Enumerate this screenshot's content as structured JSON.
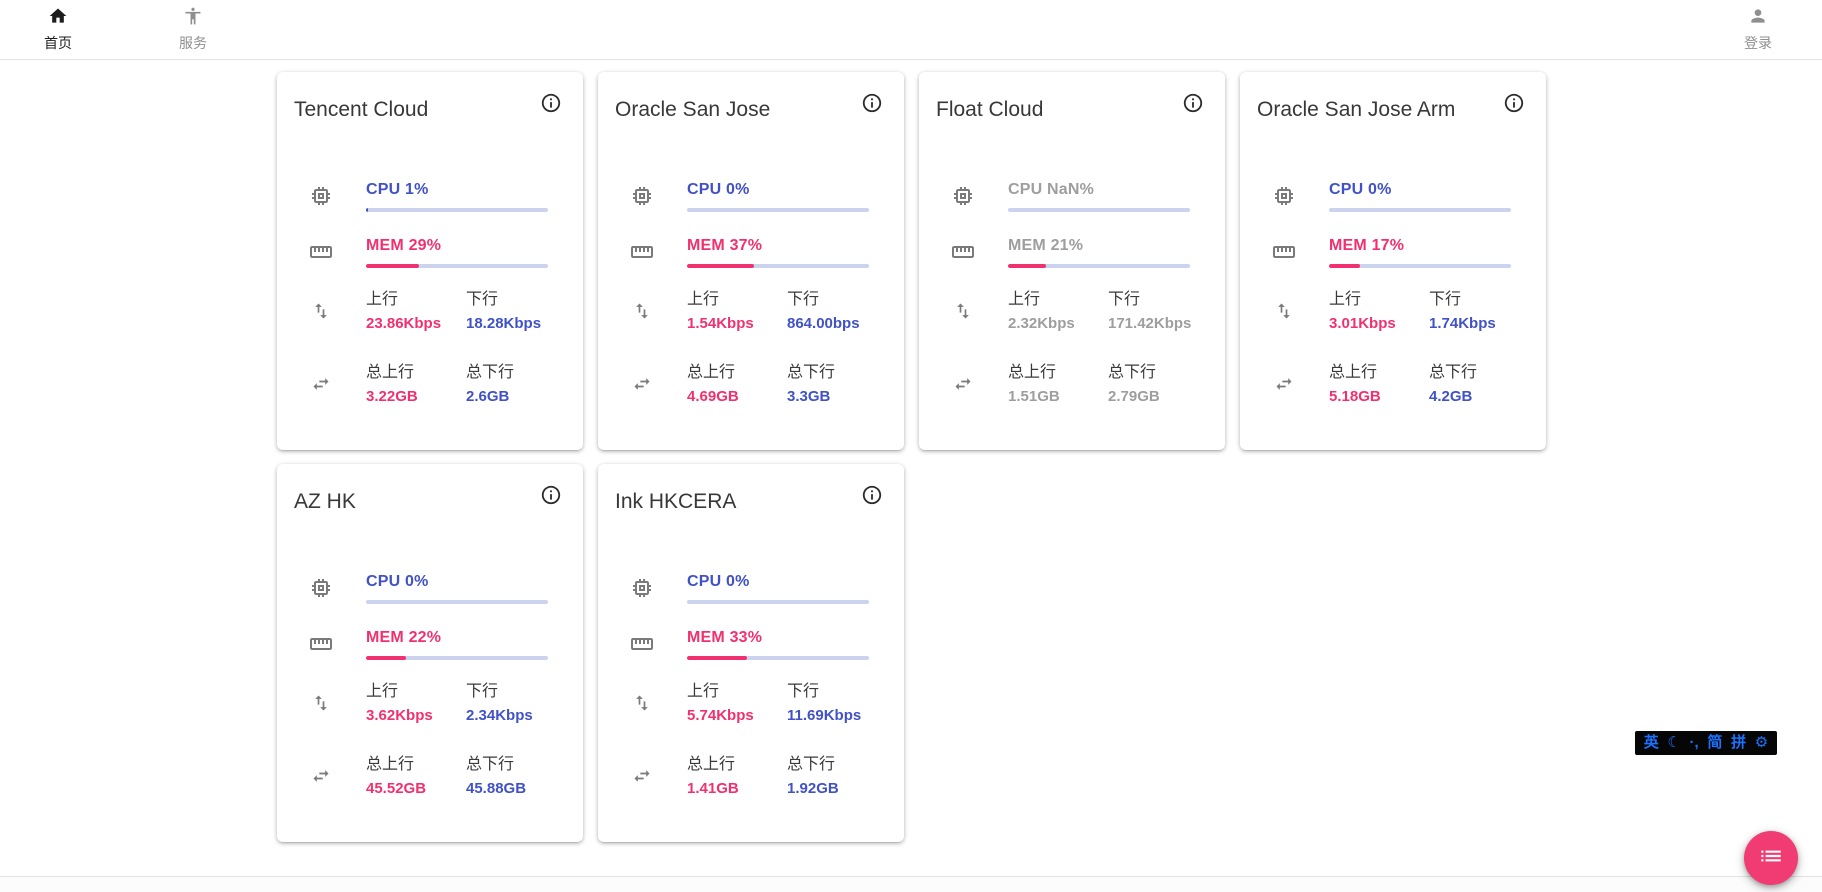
{
  "colors": {
    "blue": "#4152c7",
    "pink": "#f1316f",
    "track": "#ccd3ee",
    "gray": "#9e9e9e",
    "ime-blue": "#1a73ff",
    "fab-pink": "#f13c73"
  },
  "nav": {
    "home": "首页",
    "services": "服务",
    "login": "登录"
  },
  "labels": {
    "up": "上行",
    "down": "下行",
    "total_up": "总上行",
    "total_down": "总下行"
  },
  "cards": [
    {
      "title": "Tencent Cloud",
      "cpu_label": "CPU 1%",
      "cpu_pct": 1,
      "mem_label": "MEM 29%",
      "mem_pct": 29,
      "up_value": "23.86Kbps",
      "down_value": "18.28Kbps",
      "total_up_value": "3.22GB",
      "total_down_value": "2.6GB",
      "offline": false
    },
    {
      "title": "Oracle San Jose",
      "cpu_label": "CPU 0%",
      "cpu_pct": 0,
      "mem_label": "MEM 37%",
      "mem_pct": 37,
      "up_value": "1.54Kbps",
      "down_value": "864.00bps",
      "total_up_value": "4.69GB",
      "total_down_value": "3.3GB",
      "offline": false
    },
    {
      "title": "Float Cloud",
      "cpu_label": "CPU NaN%",
      "cpu_pct": null,
      "mem_label": "MEM 21%",
      "mem_pct": 21,
      "up_value": "2.32Kbps",
      "down_value": "171.42Kbps",
      "total_up_value": "1.51GB",
      "total_down_value": "2.79GB",
      "offline": true
    },
    {
      "title": "Oracle San Jose Arm",
      "cpu_label": "CPU 0%",
      "cpu_pct": 0,
      "mem_label": "MEM 17%",
      "mem_pct": 17,
      "up_value": "3.01Kbps",
      "down_value": "1.74Kbps",
      "total_up_value": "5.18GB",
      "total_down_value": "4.2GB",
      "offline": false
    },
    {
      "title": "AZ HK",
      "cpu_label": "CPU 0%",
      "cpu_pct": 0,
      "mem_label": "MEM 22%",
      "mem_pct": 22,
      "up_value": "3.62Kbps",
      "down_value": "2.34Kbps",
      "total_up_value": "45.52GB",
      "total_down_value": "45.88GB",
      "offline": false
    },
    {
      "title": "Ink HKCERA",
      "cpu_label": "CPU 0%",
      "cpu_pct": 0,
      "mem_label": "MEM 33%",
      "mem_pct": 33,
      "up_value": "5.74Kbps",
      "down_value": "11.69Kbps",
      "total_up_value": "1.41GB",
      "total_down_value": "1.92GB",
      "offline": false
    }
  ],
  "ime": {
    "items": [
      "英",
      "☾",
      "·,",
      "简",
      "拼",
      "⚙"
    ]
  }
}
